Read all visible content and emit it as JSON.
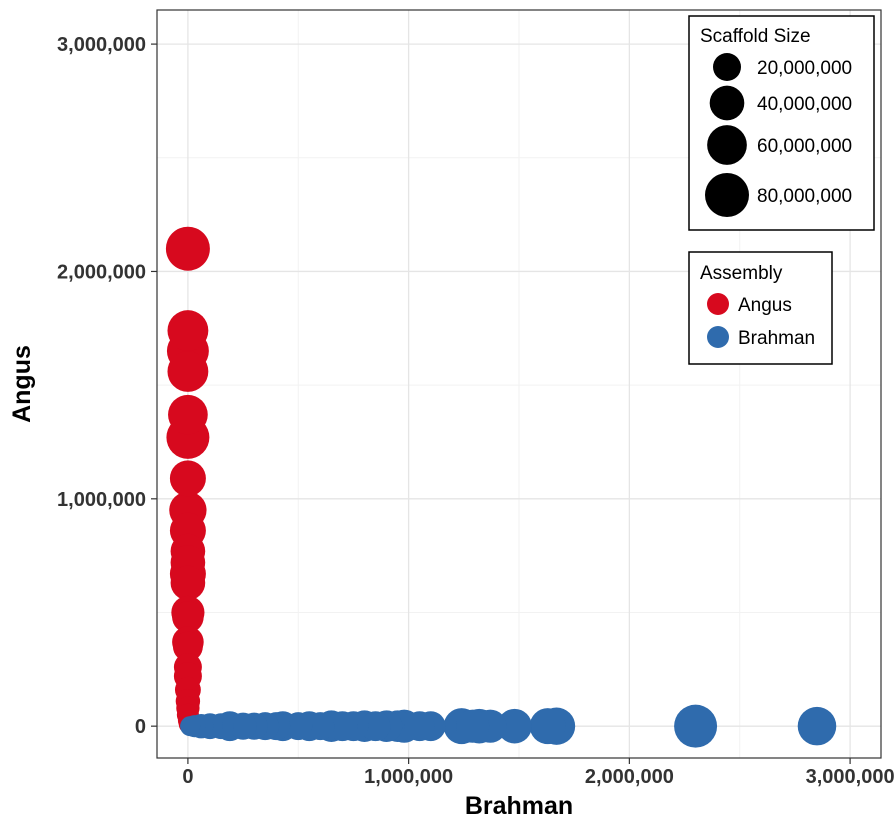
{
  "chart_data": {
    "type": "scatter",
    "xlabel": "Brahman",
    "ylabel": "Angus",
    "xlim": [
      -140000,
      3140000
    ],
    "ylim": [
      -140000,
      3150000
    ],
    "x_ticks": [
      0,
      1000000,
      2000000,
      3000000
    ],
    "x_tick_labels": [
      "0",
      "1,000,000",
      "2,000,000",
      "3,000,000"
    ],
    "y_ticks": [
      0,
      1000000,
      2000000,
      3000000
    ],
    "y_tick_labels": [
      "0",
      "1,000,000",
      "2,000,000",
      "3,000,000"
    ],
    "grid": true,
    "size_legend": {
      "title": "Scaffold Size",
      "entries": [
        {
          "label": "20,000,000",
          "value": 20000000
        },
        {
          "label": "40,000,000",
          "value": 40000000
        },
        {
          "label": "60,000,000",
          "value": 60000000
        },
        {
          "label": "80,000,000",
          "value": 80000000
        }
      ]
    },
    "color_legend": {
      "title": "Assembly",
      "entries": [
        {
          "label": "Angus",
          "color": "#D7091E"
        },
        {
          "label": "Brahman",
          "color": "#2F6BAD"
        }
      ]
    },
    "series": [
      {
        "name": "Angus",
        "color": "#D7091E",
        "points": [
          {
            "x": 0,
            "y": 2100000,
            "size": 80000000
          },
          {
            "x": 0,
            "y": 1740000,
            "size": 65000000
          },
          {
            "x": 0,
            "y": 1650000,
            "size": 70000000
          },
          {
            "x": 0,
            "y": 1560000,
            "size": 65000000
          },
          {
            "x": 0,
            "y": 1370000,
            "size": 60000000
          },
          {
            "x": 0,
            "y": 1270000,
            "size": 75000000
          },
          {
            "x": 0,
            "y": 1090000,
            "size": 45000000
          },
          {
            "x": 0,
            "y": 950000,
            "size": 50000000
          },
          {
            "x": 0,
            "y": 860000,
            "size": 45000000
          },
          {
            "x": 0,
            "y": 770000,
            "size": 40000000
          },
          {
            "x": 0,
            "y": 720000,
            "size": 40000000
          },
          {
            "x": 0,
            "y": 670000,
            "size": 45000000
          },
          {
            "x": 0,
            "y": 630000,
            "size": 40000000
          },
          {
            "x": 0,
            "y": 500000,
            "size": 35000000
          },
          {
            "x": 0,
            "y": 480000,
            "size": 30000000
          },
          {
            "x": 0,
            "y": 370000,
            "size": 30000000
          },
          {
            "x": 0,
            "y": 350000,
            "size": 25000000
          },
          {
            "x": 0,
            "y": 260000,
            "size": 20000000
          },
          {
            "x": 0,
            "y": 220000,
            "size": 20000000
          },
          {
            "x": 0,
            "y": 160000,
            "size": 15000000
          },
          {
            "x": 0,
            "y": 110000,
            "size": 12000000
          },
          {
            "x": 0,
            "y": 80000,
            "size": 10000000
          },
          {
            "x": 0,
            "y": 50000,
            "size": 8000000
          },
          {
            "x": 0,
            "y": 25000,
            "size": 5000000
          },
          {
            "x": 0,
            "y": 8000,
            "size": 3000000
          }
        ]
      },
      {
        "name": "Brahman",
        "color": "#2F6BAD",
        "points": [
          {
            "x": 2850000,
            "y": 0,
            "size": 55000000
          },
          {
            "x": 2300000,
            "y": 0,
            "size": 75000000
          },
          {
            "x": 1670000,
            "y": 0,
            "size": 50000000
          },
          {
            "x": 1630000,
            "y": 0,
            "size": 45000000
          },
          {
            "x": 1480000,
            "y": 0,
            "size": 40000000
          },
          {
            "x": 1370000,
            "y": 0,
            "size": 35000000
          },
          {
            "x": 1320000,
            "y": 0,
            "size": 40000000
          },
          {
            "x": 1290000,
            "y": 0,
            "size": 35000000
          },
          {
            "x": 1240000,
            "y": 0,
            "size": 45000000
          },
          {
            "x": 1100000,
            "y": 0,
            "size": 25000000
          },
          {
            "x": 1050000,
            "y": 0,
            "size": 25000000
          },
          {
            "x": 980000,
            "y": 0,
            "size": 35000000
          },
          {
            "x": 950000,
            "y": 0,
            "size": 30000000
          },
          {
            "x": 900000,
            "y": 0,
            "size": 30000000
          },
          {
            "x": 850000,
            "y": 0,
            "size": 25000000
          },
          {
            "x": 800000,
            "y": 0,
            "size": 30000000
          },
          {
            "x": 750000,
            "y": 0,
            "size": 25000000
          },
          {
            "x": 700000,
            "y": 0,
            "size": 25000000
          },
          {
            "x": 650000,
            "y": 0,
            "size": 30000000
          },
          {
            "x": 600000,
            "y": 0,
            "size": 20000000
          },
          {
            "x": 550000,
            "y": 0,
            "size": 25000000
          },
          {
            "x": 500000,
            "y": 0,
            "size": 20000000
          },
          {
            "x": 430000,
            "y": 0,
            "size": 25000000
          },
          {
            "x": 400000,
            "y": 0,
            "size": 20000000
          },
          {
            "x": 350000,
            "y": 0,
            "size": 20000000
          },
          {
            "x": 300000,
            "y": 0,
            "size": 18000000
          },
          {
            "x": 250000,
            "y": 0,
            "size": 18000000
          },
          {
            "x": 190000,
            "y": 0,
            "size": 25000000
          },
          {
            "x": 150000,
            "y": 0,
            "size": 15000000
          },
          {
            "x": 100000,
            "y": 0,
            "size": 15000000
          },
          {
            "x": 60000,
            "y": 0,
            "size": 12000000
          },
          {
            "x": 30000,
            "y": 0,
            "size": 8000000
          },
          {
            "x": 10000,
            "y": 0,
            "size": 5000000
          }
        ]
      }
    ]
  }
}
